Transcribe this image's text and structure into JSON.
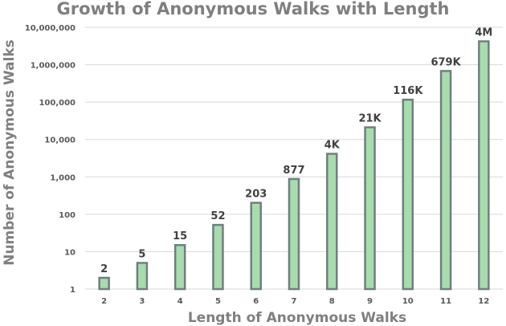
{
  "chart_data": {
    "type": "bar",
    "title": "Growth of Anonymous Walks with Length",
    "xlabel": "Length of Anonymous Walks",
    "ylabel": "Number of Anonymous Walks",
    "y_scale": "log",
    "ylim": [
      1,
      10000000
    ],
    "grid": true,
    "categories": [
      "2",
      "3",
      "4",
      "5",
      "6",
      "7",
      "8",
      "9",
      "10",
      "11",
      "12"
    ],
    "values": [
      2,
      5,
      15,
      52,
      203,
      877,
      4140,
      21147,
      115975,
      678570,
      4213597
    ],
    "data_labels": [
      "2",
      "5",
      "15",
      "52",
      "203",
      "877",
      "4K",
      "21K",
      "116K",
      "679K",
      "4M"
    ],
    "y_ticks": [
      1,
      10,
      100,
      1000,
      10000,
      100000,
      1000000,
      10000000
    ],
    "y_tick_labels": [
      "1",
      "10",
      "100",
      "1,000",
      "10,000",
      "100,000",
      "1,000,000",
      "10,000,000"
    ],
    "colors": {
      "bar_fill": "#a8dcae",
      "bar_stroke": "#6f7f7f",
      "title": "#7f7f7f",
      "grid": "#d9d9d9"
    }
  }
}
